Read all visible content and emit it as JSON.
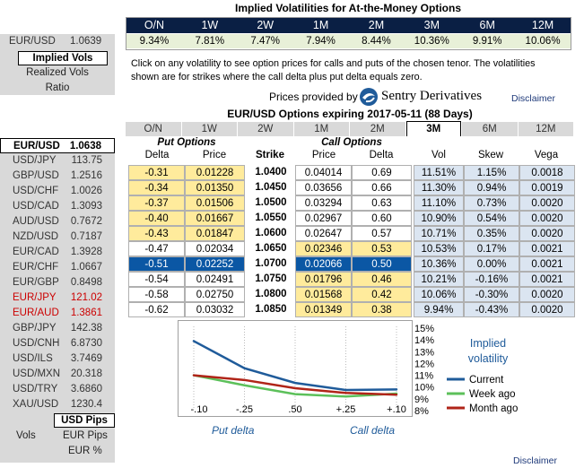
{
  "top": {
    "title": "Implied Volatilities for At-the-Money Options",
    "tenors": [
      "O/N",
      "1W",
      "2W",
      "1M",
      "2M",
      "3M",
      "6M",
      "12M"
    ],
    "atm_vols": [
      "9.34%",
      "7.81%",
      "7.47%",
      "7.94%",
      "8.44%",
      "10.36%",
      "9.91%",
      "10.06%"
    ],
    "info_line1": "Click on any volatility to see option prices for calls and puts of the chosen tenor. The volatilities",
    "info_line2": "shown are for strikes where the call delta plus put delta equals zero.",
    "provided_by": "Prices provided by",
    "provider": "Sentry Derivatives",
    "disclaimer": "Disclaimer"
  },
  "left_top": {
    "pair": "EUR/USD",
    "spot": "1.0639",
    "implied_label": "Implied Vols",
    "realized_label": "Realized Vols",
    "ratio_label": "Ratio"
  },
  "pairs": [
    {
      "name": "EUR/USD",
      "value": "1.0638",
      "bold": true
    },
    {
      "name": "USD/JPY",
      "value": "113.75"
    },
    {
      "name": "GBP/USD",
      "value": "1.2516"
    },
    {
      "name": "USD/CHF",
      "value": "1.0026"
    },
    {
      "name": "USD/CAD",
      "value": "1.3093"
    },
    {
      "name": "AUD/USD",
      "value": "0.7672"
    },
    {
      "name": "NZD/USD",
      "value": "0.7187"
    },
    {
      "name": "EUR/CAD",
      "value": "1.3928"
    },
    {
      "name": "EUR/CHF",
      "value": "1.0667"
    },
    {
      "name": "EUR/GBP",
      "value": "0.8498"
    },
    {
      "name": "EUR/JPY",
      "value": "121.02",
      "red": true
    },
    {
      "name": "EUR/AUD",
      "value": "1.3861",
      "red": true
    },
    {
      "name": "GBP/JPY",
      "value": "142.38"
    },
    {
      "name": "USD/CNH",
      "value": "6.8730"
    },
    {
      "name": "USD/ILS",
      "value": "3.7469"
    },
    {
      "name": "USD/MXN",
      "value": "20.318"
    },
    {
      "name": "USD/TRY",
      "value": "3.6860"
    },
    {
      "name": "XAU/USD",
      "value": "1230.4"
    }
  ],
  "left_bottom": {
    "usd_pips": "USD Pips",
    "vols": "Vols",
    "eur_pips": "EUR Pips",
    "eur_pct": "EUR %"
  },
  "options": {
    "title": "EUR/USD Options expiring 2017-05-11 (88 Days)",
    "active_tab": "3M",
    "put_header": "Put Options",
    "call_header": "Call Options",
    "columns": {
      "delta": "Delta",
      "price": "Price",
      "strike": "Strike",
      "vol": "Vol",
      "skew": "Skew",
      "vega": "Vega"
    },
    "rows": [
      {
        "pd": "-0.31",
        "pp": "0.01228",
        "k": "1.0400",
        "cp": "0.04014",
        "cd": "0.69",
        "vol": "11.51%",
        "skew": "1.15%",
        "vega": "0.0018"
      },
      {
        "pd": "-0.34",
        "pp": "0.01350",
        "k": "1.0450",
        "cp": "0.03656",
        "cd": "0.66",
        "vol": "11.30%",
        "skew": "0.94%",
        "vega": "0.0019"
      },
      {
        "pd": "-0.37",
        "pp": "0.01506",
        "k": "1.0500",
        "cp": "0.03294",
        "cd": "0.63",
        "vol": "11.10%",
        "skew": "0.73%",
        "vega": "0.0020"
      },
      {
        "pd": "-0.40",
        "pp": "0.01667",
        "k": "1.0550",
        "cp": "0.02967",
        "cd": "0.60",
        "vol": "10.90%",
        "skew": "0.54%",
        "vega": "0.0020"
      },
      {
        "pd": "-0.43",
        "pp": "0.01847",
        "k": "1.0600",
        "cp": "0.02647",
        "cd": "0.57",
        "vol": "10.71%",
        "skew": "0.35%",
        "vega": "0.0020"
      },
      {
        "pd": "-0.47",
        "pp": "0.02034",
        "k": "1.0650",
        "cp": "0.02346",
        "cd": "0.53",
        "vol": "10.53%",
        "skew": "0.17%",
        "vega": "0.0021"
      },
      {
        "pd": "-0.51",
        "pp": "0.02252",
        "k": "1.0700",
        "cp": "0.02066",
        "cd": "0.50",
        "vol": "10.36%",
        "skew": "0.00%",
        "vega": "0.0021"
      },
      {
        "pd": "-0.54",
        "pp": "0.02491",
        "k": "1.0750",
        "cp": "0.01796",
        "cd": "0.46",
        "vol": "10.21%",
        "skew": "-0.16%",
        "vega": "0.0021"
      },
      {
        "pd": "-0.58",
        "pp": "0.02750",
        "k": "1.0800",
        "cp": "0.01568",
        "cd": "0.42",
        "vol": "10.06%",
        "skew": "-0.30%",
        "vega": "0.0020"
      },
      {
        "pd": "-0.62",
        "pp": "0.03032",
        "k": "1.0850",
        "cp": "0.01349",
        "cd": "0.38",
        "vol": "9.94%",
        "skew": "-0.43%",
        "vega": "0.0020"
      }
    ]
  },
  "colors": {
    "navy": "#0a1f44",
    "current": "#1f5b9a",
    "week": "#5cc05a",
    "month": "#b02418",
    "yellow": "#ffeb9c",
    "lightblue": "#dbe5f1",
    "selected": "#0b57a4"
  },
  "chart_data": {
    "type": "line",
    "title": "Implied volatility",
    "x_tick_labels": [
      "-.10",
      "-.25",
      ".50",
      "+.25",
      "+.10"
    ],
    "x": [
      -0.1,
      -0.25,
      0.5,
      0.25,
      0.1
    ],
    "xlabel_left": "Put delta",
    "xlabel_right": "Call delta",
    "y_tick_labels": [
      "8%",
      "9%",
      "10%",
      "11%",
      "12%",
      "13%",
      "14%",
      "15%"
    ],
    "ylim": [
      8,
      15
    ],
    "series": [
      {
        "name": "Current",
        "values": [
          13.9,
          11.6,
          10.35,
          9.75,
          9.8
        ]
      },
      {
        "name": "Week ago",
        "values": [
          11.0,
          10.15,
          9.4,
          9.2,
          9.45
        ]
      },
      {
        "name": "Month ago",
        "values": [
          11.0,
          10.6,
          9.9,
          9.5,
          9.35
        ]
      }
    ],
    "legend_position": "right"
  },
  "bottom_disclaimer": "Disclaimer"
}
